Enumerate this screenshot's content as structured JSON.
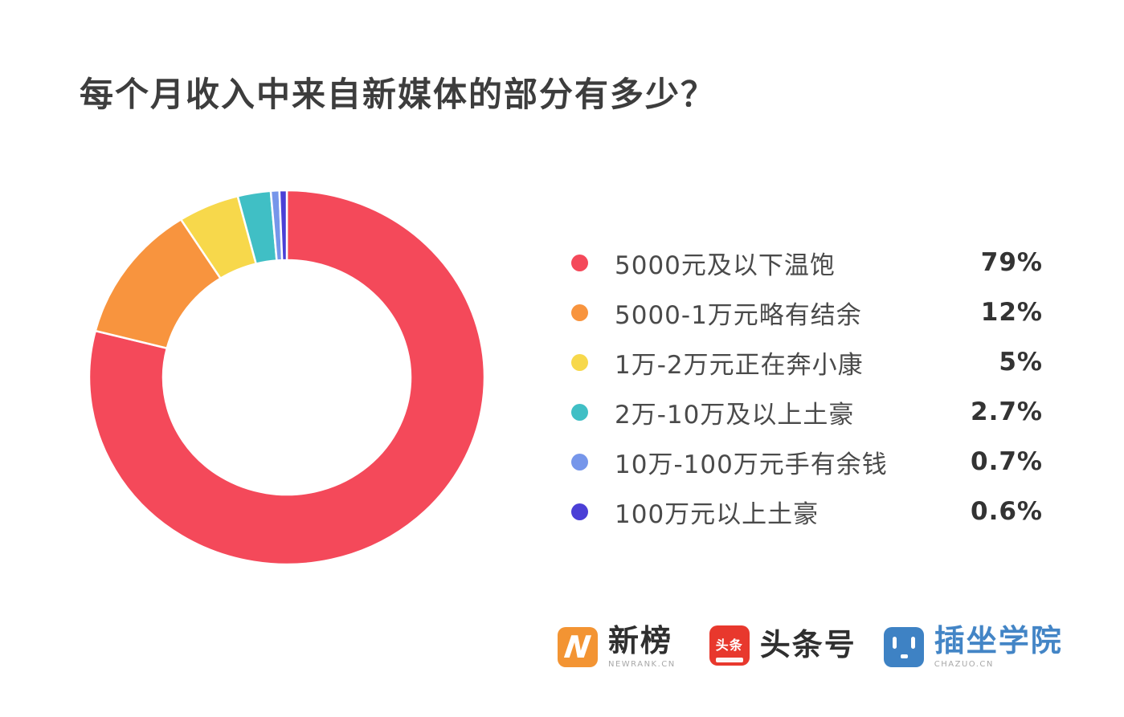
{
  "title": "每个月收入中来自新媒体的部分有多少？",
  "chart_data": {
    "type": "pie",
    "donut": true,
    "direction": "clockwise",
    "start_angle": "top",
    "title": "每个月收入中来自新媒体的部分有多少？",
    "categories": [
      "5000元及以下温饱",
      "5000-1万元略有结余",
      "1万-2万元正在奔小康",
      "2万-10万及以上土豪",
      "10万-100万元手有余钱",
      "100万元以上土豪"
    ],
    "values": [
      79,
      12,
      5,
      2.7,
      0.7,
      0.6
    ],
    "value_labels": [
      "79%",
      "12%",
      "5%",
      "2.7%",
      "0.7%",
      "0.6%"
    ],
    "unit": "%",
    "colors": [
      "#F4495A",
      "#F8943E",
      "#F7D84B",
      "#40BFC5",
      "#7696EA",
      "#4B3FD6"
    ],
    "legend_position": "right"
  },
  "legend": {
    "items": [
      {
        "label": "5000元及以下温饱",
        "value": "79%",
        "color": "#F4495A"
      },
      {
        "label": "5000-1万元略有结余",
        "value": "12%",
        "color": "#F8943E"
      },
      {
        "label": "1万-2万元正在奔小康",
        "value": "5%",
        "color": "#F7D84B"
      },
      {
        "label": "2万-10万及以上土豪",
        "value": "2.7%",
        "color": "#40BFC5"
      },
      {
        "label": "10万-100万元手有余钱",
        "value": "0.7%",
        "color": "#7696EA"
      },
      {
        "label": "100万元以上土豪",
        "value": "0.6%",
        "color": "#4B3FD6"
      }
    ]
  },
  "footer": {
    "logos": [
      {
        "text": "新榜",
        "subtext": "NEWRANK.CN",
        "badge_letter": "N",
        "badge_color": "#F39433"
      },
      {
        "text": "头条号",
        "badge_text": "头条",
        "badge_color": "#E8382D"
      },
      {
        "text": "插坐学院",
        "subtext": "CHAZUO.CN",
        "badge_color": "#3E82C4",
        "text_color": "#4385C6"
      }
    ]
  },
  "colors": {
    "background": "#FFFFFF",
    "title_text": "#3D3D3D",
    "legend_text": "#4A4A4A",
    "value_text": "#333333",
    "slice_gap": "#FFFFFF"
  }
}
